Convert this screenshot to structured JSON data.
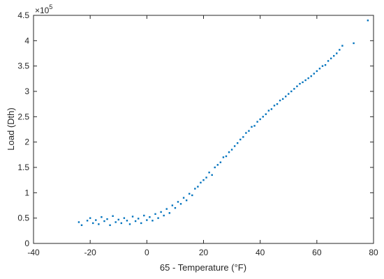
{
  "chart_data": {
    "type": "scatter",
    "title": "",
    "xlabel": "65 - Temperature (°F)",
    "ylabel": "Load (Dth)",
    "xlim": [
      -40,
      80
    ],
    "ylim": [
      0,
      450000
    ],
    "xticks": [
      -40,
      -20,
      0,
      20,
      40,
      60,
      80
    ],
    "yticks": [
      0,
      50000,
      100000,
      150000,
      200000,
      250000,
      300000,
      350000,
      400000,
      450000
    ],
    "ytick_labels": [
      "0",
      "0.5",
      "1",
      "1.5",
      "2",
      "2.5",
      "3",
      "3.5",
      "4",
      "4.5"
    ],
    "y_exponent_label": "×10",
    "y_exponent_power": "5",
    "grid": false,
    "marker_color": "#0072BD",
    "series": [
      {
        "name": "",
        "points": [
          [
            -24,
            42000
          ],
          [
            -23,
            36000
          ],
          [
            -21,
            45000
          ],
          [
            -20,
            50000
          ],
          [
            -19,
            40000
          ],
          [
            -18,
            46000
          ],
          [
            -17,
            38000
          ],
          [
            -16,
            52000
          ],
          [
            -15,
            44000
          ],
          [
            -14,
            48000
          ],
          [
            -13,
            36000
          ],
          [
            -12,
            54000
          ],
          [
            -11,
            42000
          ],
          [
            -10,
            47000
          ],
          [
            -9,
            40000
          ],
          [
            -8,
            50000
          ],
          [
            -7,
            45000
          ],
          [
            -6,
            38000
          ],
          [
            -5,
            53000
          ],
          [
            -4,
            44000
          ],
          [
            -3,
            49000
          ],
          [
            -2,
            40000
          ],
          [
            -1,
            55000
          ],
          [
            0,
            46000
          ],
          [
            1,
            52000
          ],
          [
            2,
            45000
          ],
          [
            3,
            58000
          ],
          [
            4,
            50000
          ],
          [
            5,
            62000
          ],
          [
            6,
            55000
          ],
          [
            7,
            68000
          ],
          [
            8,
            60000
          ],
          [
            9,
            75000
          ],
          [
            10,
            70000
          ],
          [
            11,
            82000
          ],
          [
            12,
            78000
          ],
          [
            13,
            90000
          ],
          [
            14,
            85000
          ],
          [
            15,
            98000
          ],
          [
            16,
            95000
          ],
          [
            17,
            108000
          ],
          [
            18,
            112000
          ],
          [
            19,
            120000
          ],
          [
            20,
            125000
          ],
          [
            21,
            130000
          ],
          [
            22,
            140000
          ],
          [
            23,
            135000
          ],
          [
            24,
            150000
          ],
          [
            25,
            155000
          ],
          [
            26,
            160000
          ],
          [
            27,
            170000
          ],
          [
            28,
            172000
          ],
          [
            29,
            180000
          ],
          [
            30,
            185000
          ],
          [
            31,
            192000
          ],
          [
            32,
            198000
          ],
          [
            33,
            205000
          ],
          [
            34,
            210000
          ],
          [
            35,
            218000
          ],
          [
            36,
            222000
          ],
          [
            37,
            230000
          ],
          [
            38,
            232000
          ],
          [
            39,
            240000
          ],
          [
            40,
            245000
          ],
          [
            41,
            250000
          ],
          [
            42,
            255000
          ],
          [
            43,
            262000
          ],
          [
            44,
            265000
          ],
          [
            45,
            272000
          ],
          [
            46,
            275000
          ],
          [
            47,
            282000
          ],
          [
            48,
            285000
          ],
          [
            49,
            290000
          ],
          [
            50,
            295000
          ],
          [
            51,
            300000
          ],
          [
            52,
            305000
          ],
          [
            53,
            310000
          ],
          [
            54,
            315000
          ],
          [
            55,
            318000
          ],
          [
            56,
            322000
          ],
          [
            57,
            326000
          ],
          [
            58,
            330000
          ],
          [
            59,
            335000
          ],
          [
            60,
            340000
          ],
          [
            61,
            345000
          ],
          [
            62,
            350000
          ],
          [
            63,
            352000
          ],
          [
            64,
            360000
          ],
          [
            65,
            365000
          ],
          [
            66,
            370000
          ],
          [
            67,
            375000
          ],
          [
            68,
            382000
          ],
          [
            69,
            390000
          ],
          [
            73,
            395000
          ],
          [
            78,
            440000
          ]
        ]
      }
    ]
  }
}
